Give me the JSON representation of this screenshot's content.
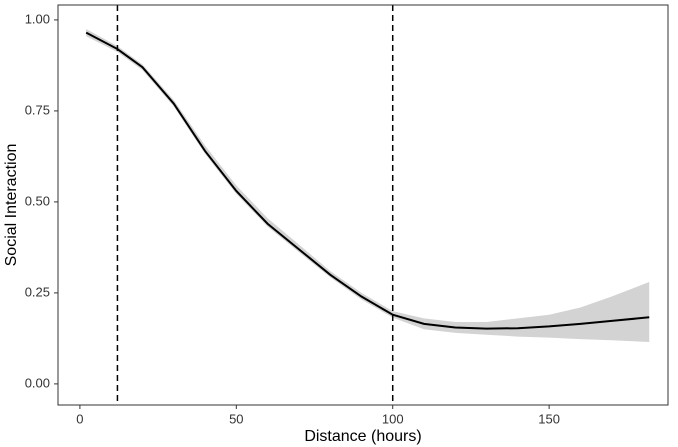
{
  "chart_data": {
    "type": "line",
    "x_label": "Distance (hours)",
    "y_label": "Social Interaction",
    "x": [
      2,
      12,
      20,
      30,
      40,
      50,
      60,
      70,
      80,
      90,
      100,
      110,
      120,
      130,
      140,
      150,
      160,
      170,
      182
    ],
    "series": [
      {
        "color": "#000000",
        "values": [
          0.965,
          0.92,
          0.87,
          0.77,
          0.64,
          0.53,
          0.44,
          0.37,
          0.3,
          0.24,
          0.19,
          0.165,
          0.155,
          0.152,
          0.153,
          0.158,
          0.165,
          0.173,
          0.183
        ],
        "band_lower": [
          0.955,
          0.912,
          0.862,
          0.762,
          0.632,
          0.522,
          0.432,
          0.362,
          0.293,
          0.232,
          0.182,
          0.15,
          0.14,
          0.135,
          0.13,
          0.127,
          0.123,
          0.12,
          0.115
        ],
        "band_upper": [
          0.975,
          0.928,
          0.878,
          0.78,
          0.655,
          0.545,
          0.455,
          0.383,
          0.31,
          0.25,
          0.2,
          0.18,
          0.17,
          0.17,
          0.18,
          0.19,
          0.21,
          0.24,
          0.28
        ],
        "band_color": "#d3d3d3"
      }
    ],
    "vlines": [
      12,
      100
    ],
    "xlim": [
      -7,
      188
    ],
    "ylim": [
      -0.058,
      1.041
    ],
    "xticks": [
      0,
      50,
      100,
      150
    ],
    "yticks": [
      {
        "value": 0,
        "label": "0.00"
      },
      {
        "value": 0.25,
        "label": "0.25"
      },
      {
        "value": 0.5,
        "label": "0.50"
      },
      {
        "value": 0.75,
        "label": "0.75"
      },
      {
        "value": 1,
        "label": "1.00"
      }
    ],
    "grid": false
  }
}
